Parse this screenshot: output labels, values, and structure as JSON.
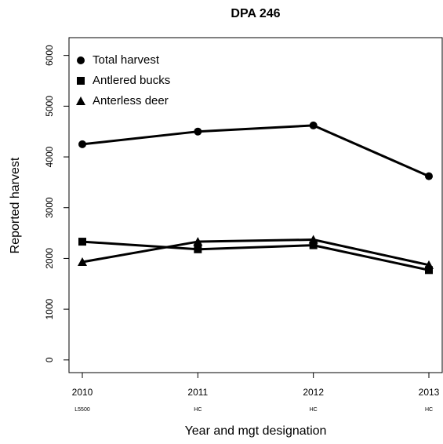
{
  "chart_data": {
    "type": "line",
    "title": "DPA 246",
    "x_label": "Year and mgt designation",
    "y_label": "Reported harvest",
    "categories": [
      "2010",
      "2011",
      "2012",
      "2013"
    ],
    "designations": [
      "L5500",
      "HC",
      "HC",
      "HC"
    ],
    "series": [
      {
        "name": "Total harvest",
        "color": "#000000",
        "marker": "circle",
        "values": [
          4250,
          4500,
          4620,
          3620
        ]
      },
      {
        "name": "Antlered bucks",
        "color": "#000000",
        "marker": "square",
        "values": [
          2330,
          2180,
          2260,
          1770
        ]
      },
      {
        "name": "Anterless deer",
        "color": "#000000",
        "marker": "triangle",
        "values": [
          1930,
          2330,
          2370,
          1870
        ]
      }
    ],
    "ylim": [
      -250,
      6350
    ],
    "yticks": [
      0,
      1000,
      2000,
      3000,
      4000,
      5000,
      6000
    ],
    "legend": "top-left"
  }
}
